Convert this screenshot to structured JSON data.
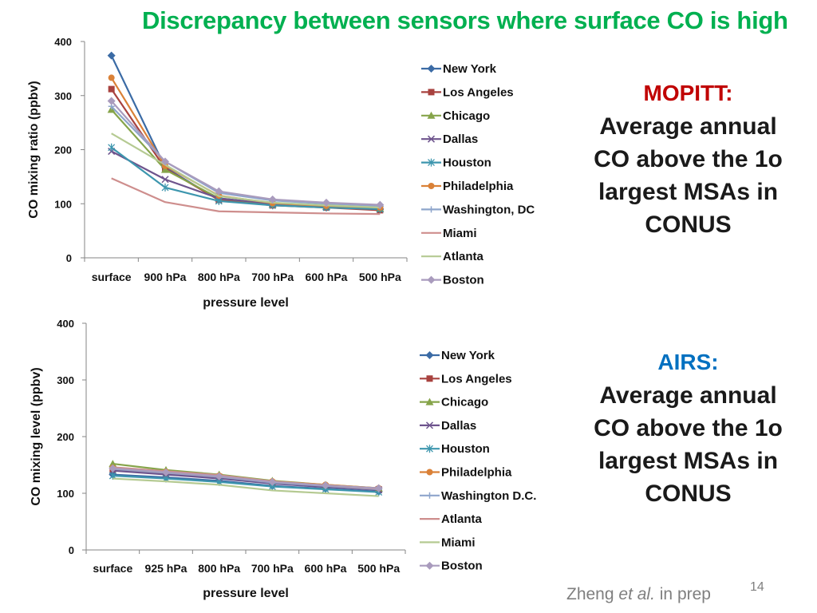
{
  "slide": {
    "title": "Discrepancy between sensors where surface CO is high",
    "credit_author": "Zheng",
    "credit_etal": "et al.",
    "credit_rest": "in prep",
    "page_number": "14"
  },
  "side_texts": {
    "mopitt_head": "MOPITT:",
    "mopitt_body": "Average annual CO above the 1o largest MSAs in CONUS",
    "airs_head": "AIRS:",
    "airs_body": "Average annual CO above the 1o largest MSAs in CONUS"
  },
  "chart_data": [
    {
      "type": "line",
      "panel": "mopitt",
      "title": "",
      "xlabel": "pressure level",
      "ylabel": "CO mixing ratio (ppbv)",
      "ylim": [
        0,
        400
      ],
      "yticks": [
        0,
        100,
        200,
        300,
        400
      ],
      "grid": false,
      "legend_position": "right",
      "categories": [
        "surface",
        "900 hPa",
        "800 hPa",
        "700 hPa",
        "600 hPa",
        "500 hPa"
      ],
      "series": [
        {
          "name": "New York",
          "color": "#3b6ba5",
          "marker": "diamond",
          "values": [
            374,
            167,
            107,
            98,
            94,
            90
          ]
        },
        {
          "name": "Los Angeles",
          "color": "#a8423f",
          "marker": "square",
          "values": [
            312,
            165,
            107,
            97,
            93,
            88
          ]
        },
        {
          "name": "Chicago",
          "color": "#86a44a",
          "marker": "triangle",
          "values": [
            274,
            163,
            110,
            99,
            95,
            91
          ]
        },
        {
          "name": "Dallas",
          "color": "#6e548d",
          "marker": "x",
          "values": [
            197,
            145,
            110,
            100,
            94,
            90
          ]
        },
        {
          "name": "Houston",
          "color": "#3d96ae",
          "marker": "star",
          "values": [
            204,
            130,
            105,
            97,
            93,
            90
          ]
        },
        {
          "name": "Philadelphia",
          "color": "#da8137",
          "marker": "circle",
          "values": [
            333,
            170,
            115,
            101,
            96,
            93
          ]
        },
        {
          "name": "Washington, DC",
          "color": "#8ea5cb",
          "marker": "plus",
          "values": [
            280,
            178,
            120,
            106,
            100,
            96
          ]
        },
        {
          "name": "Miami",
          "color": "#ce8e8d",
          "marker": "none",
          "values": [
            147,
            103,
            86,
            84,
            82,
            81
          ]
        },
        {
          "name": "Atlanta",
          "color": "#b5ca92",
          "marker": "none",
          "values": [
            230,
            172,
            114,
            102,
            97,
            93
          ]
        },
        {
          "name": "Boston",
          "color": "#a99bbd",
          "marker": "diamond",
          "values": [
            290,
            178,
            123,
            108,
            102,
            98
          ]
        }
      ]
    },
    {
      "type": "line",
      "panel": "airs",
      "title": "",
      "xlabel": "pressure level",
      "ylabel": "CO mixing level (ppbv)",
      "ylim": [
        0,
        400
      ],
      "yticks": [
        0,
        100,
        200,
        300,
        400
      ],
      "grid": false,
      "legend_position": "right",
      "categories": [
        "surface",
        "925 hPa",
        "800 hPa",
        "700 hPa",
        "600 hPa",
        "500 hPa"
      ],
      "series": [
        {
          "name": "New York",
          "color": "#3b6ba5",
          "marker": "diamond",
          "values": [
            133,
            128,
            122,
            113,
            108,
            103
          ]
        },
        {
          "name": "Los Angeles",
          "color": "#a8423f",
          "marker": "square",
          "values": [
            142,
            135,
            129,
            118,
            112,
            107
          ]
        },
        {
          "name": "Chicago",
          "color": "#86a44a",
          "marker": "triangle",
          "values": [
            152,
            141,
            133,
            122,
            115,
            109
          ]
        },
        {
          "name": "Dallas",
          "color": "#6e548d",
          "marker": "x",
          "values": [
            140,
            133,
            126,
            117,
            111,
            106
          ]
        },
        {
          "name": "Houston",
          "color": "#3d96ae",
          "marker": "star",
          "values": [
            131,
            126,
            120,
            112,
            107,
            102
          ]
        },
        {
          "name": "Philadelphia",
          "color": "#da8137",
          "marker": "circle",
          "values": [
            145,
            138,
            131,
            121,
            115,
            109
          ]
        },
        {
          "name": "Washington D.C.",
          "color": "#8ea5cb",
          "marker": "plus",
          "values": [
            143,
            136,
            129,
            119,
            113,
            107
          ]
        },
        {
          "name": "Atlanta",
          "color": "#ce8e8d",
          "marker": "none",
          "values": [
            146,
            139,
            132,
            121,
            114,
            108
          ]
        },
        {
          "name": "Miami",
          "color": "#b5ca92",
          "marker": "none",
          "values": [
            126,
            121,
            115,
            105,
            100,
            95
          ]
        },
        {
          "name": "Boston",
          "color": "#a99bbd",
          "marker": "diamond",
          "values": [
            144,
            137,
            130,
            120,
            114,
            109
          ]
        }
      ]
    }
  ]
}
